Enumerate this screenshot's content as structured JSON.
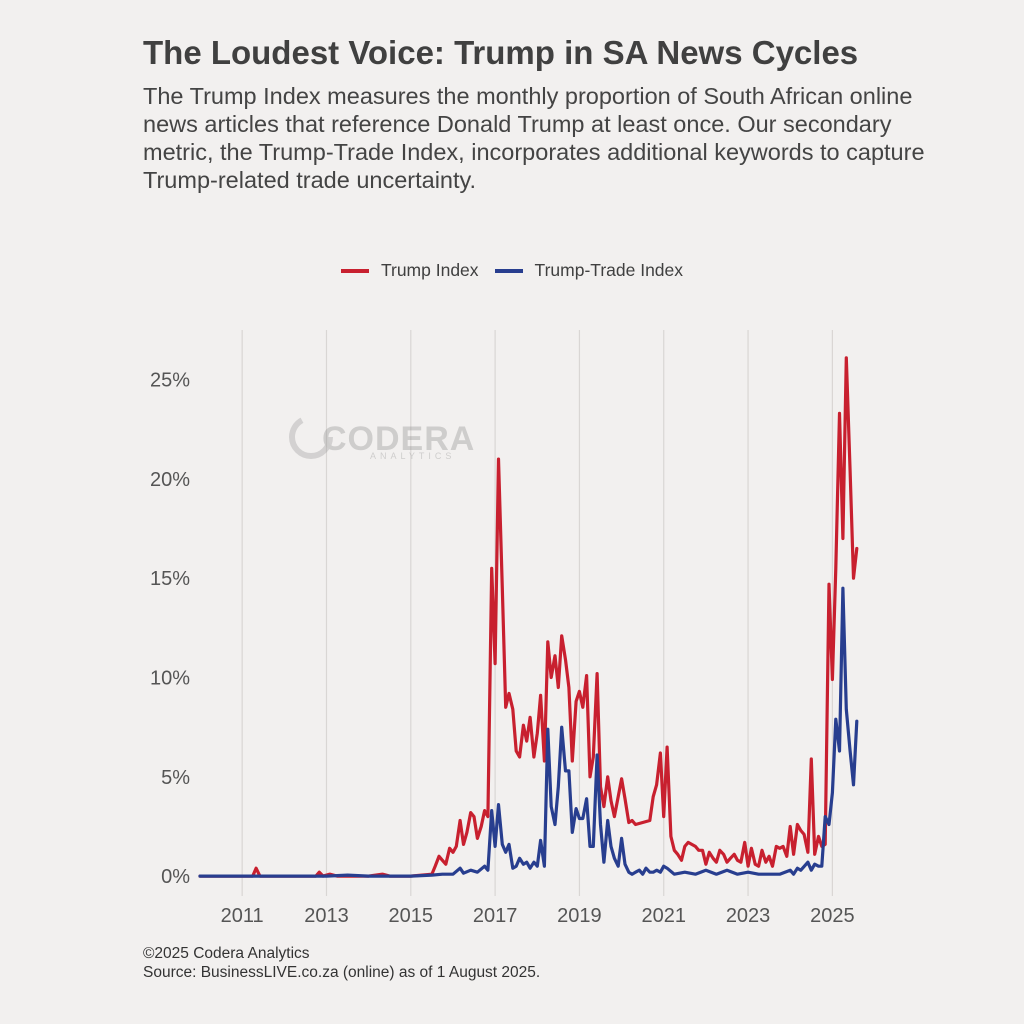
{
  "title": "The Loudest Voice: Trump in SA News Cycles",
  "subtitle": "The Trump Index measures the monthly proportion of South African online news articles that reference Donald Trump at least once. Our secondary metric, the Trump-Trade Index, incorporates additional keywords to capture Trump-related trade uncertainty.",
  "watermark": {
    "brand": "CODERA",
    "sub": "ANALYTICS"
  },
  "footer": {
    "copyright": "©2025 Codera Analytics",
    "source": "Source: BusinessLIVE.co.za (online) as of 1 August 2025."
  },
  "chart_data": {
    "type": "line",
    "title": "",
    "xlabel": "",
    "ylabel": "",
    "xlim": [
      2010.0,
      2025.75
    ],
    "ylim": [
      -1.0,
      27.5
    ],
    "x_ticks": [
      2011,
      2013,
      2015,
      2017,
      2019,
      2021,
      2023,
      2025
    ],
    "y_ticks": [
      0,
      5,
      10,
      15,
      20,
      25
    ],
    "y_tick_labels": [
      "0%",
      "5%",
      "10%",
      "15%",
      "20%",
      "25%"
    ],
    "grid": {
      "vertical": true,
      "horizontal": false
    },
    "legend": "top-center",
    "series": [
      {
        "name": "Trump Index",
        "color": "#c8202f",
        "points": [
          [
            2010.0,
            0.0
          ],
          [
            2011.0,
            0.0
          ],
          [
            2011.25,
            0.0
          ],
          [
            2011.33,
            0.4
          ],
          [
            2011.42,
            0.0
          ],
          [
            2012.75,
            0.0
          ],
          [
            2012.83,
            0.2
          ],
          [
            2012.92,
            0.0
          ],
          [
            2013.08,
            0.1
          ],
          [
            2013.25,
            0.0
          ],
          [
            2014.0,
            0.0
          ],
          [
            2014.33,
            0.1
          ],
          [
            2014.5,
            0.0
          ],
          [
            2015.0,
            0.0
          ],
          [
            2015.5,
            0.1
          ],
          [
            2015.58,
            0.5
          ],
          [
            2015.67,
            1.0
          ],
          [
            2015.75,
            0.8
          ],
          [
            2015.83,
            0.6
          ],
          [
            2015.92,
            1.4
          ],
          [
            2016.0,
            1.2
          ],
          [
            2016.08,
            1.5
          ],
          [
            2016.17,
            2.8
          ],
          [
            2016.25,
            1.6
          ],
          [
            2016.33,
            2.2
          ],
          [
            2016.42,
            3.2
          ],
          [
            2016.5,
            3.0
          ],
          [
            2016.58,
            1.9
          ],
          [
            2016.67,
            2.5
          ],
          [
            2016.75,
            3.3
          ],
          [
            2016.83,
            3.0
          ],
          [
            2016.92,
            15.5
          ],
          [
            2017.0,
            10.7
          ],
          [
            2017.08,
            21.0
          ],
          [
            2017.17,
            14.5
          ],
          [
            2017.25,
            8.5
          ],
          [
            2017.33,
            9.2
          ],
          [
            2017.42,
            8.4
          ],
          [
            2017.5,
            6.3
          ],
          [
            2017.58,
            6.0
          ],
          [
            2017.67,
            7.6
          ],
          [
            2017.75,
            6.8
          ],
          [
            2017.83,
            8.0
          ],
          [
            2017.92,
            6.0
          ],
          [
            2018.0,
            7.2
          ],
          [
            2018.08,
            9.1
          ],
          [
            2018.17,
            5.8
          ],
          [
            2018.25,
            11.8
          ],
          [
            2018.33,
            10.0
          ],
          [
            2018.42,
            11.1
          ],
          [
            2018.5,
            9.5
          ],
          [
            2018.58,
            12.1
          ],
          [
            2018.67,
            10.9
          ],
          [
            2018.75,
            9.5
          ],
          [
            2018.83,
            5.8
          ],
          [
            2018.92,
            8.8
          ],
          [
            2019.0,
            9.3
          ],
          [
            2019.08,
            8.5
          ],
          [
            2019.17,
            10.1
          ],
          [
            2019.25,
            5.0
          ],
          [
            2019.33,
            6.0
          ],
          [
            2019.42,
            10.2
          ],
          [
            2019.5,
            4.5
          ],
          [
            2019.58,
            3.5
          ],
          [
            2019.67,
            5.0
          ],
          [
            2019.75,
            3.8
          ],
          [
            2019.83,
            3.0
          ],
          [
            2019.92,
            4.0
          ],
          [
            2020.0,
            4.9
          ],
          [
            2020.08,
            3.9
          ],
          [
            2020.17,
            2.7
          ],
          [
            2020.25,
            2.8
          ],
          [
            2020.33,
            2.6
          ],
          [
            2020.5,
            2.7
          ],
          [
            2020.67,
            2.8
          ],
          [
            2020.75,
            4.0
          ],
          [
            2020.83,
            4.6
          ],
          [
            2020.92,
            6.2
          ],
          [
            2021.0,
            3.0
          ],
          [
            2021.08,
            6.5
          ],
          [
            2021.17,
            2.0
          ],
          [
            2021.25,
            1.3
          ],
          [
            2021.33,
            1.1
          ],
          [
            2021.42,
            0.8
          ],
          [
            2021.5,
            1.5
          ],
          [
            2021.58,
            1.7
          ],
          [
            2021.75,
            1.5
          ],
          [
            2021.83,
            1.3
          ],
          [
            2021.92,
            1.3
          ],
          [
            2022.0,
            0.6
          ],
          [
            2022.08,
            1.2
          ],
          [
            2022.17,
            0.9
          ],
          [
            2022.25,
            0.7
          ],
          [
            2022.33,
            1.3
          ],
          [
            2022.42,
            1.1
          ],
          [
            2022.5,
            0.7
          ],
          [
            2022.58,
            0.9
          ],
          [
            2022.67,
            1.1
          ],
          [
            2022.75,
            0.8
          ],
          [
            2022.83,
            0.7
          ],
          [
            2022.92,
            1.7
          ],
          [
            2023.0,
            0.5
          ],
          [
            2023.08,
            1.4
          ],
          [
            2023.17,
            0.6
          ],
          [
            2023.25,
            0.5
          ],
          [
            2023.33,
            1.3
          ],
          [
            2023.42,
            0.7
          ],
          [
            2023.5,
            1.0
          ],
          [
            2023.58,
            0.5
          ],
          [
            2023.67,
            1.5
          ],
          [
            2023.75,
            1.4
          ],
          [
            2023.83,
            1.5
          ],
          [
            2023.92,
            1.0
          ],
          [
            2024.0,
            2.5
          ],
          [
            2024.08,
            1.1
          ],
          [
            2024.17,
            2.6
          ],
          [
            2024.25,
            2.3
          ],
          [
            2024.33,
            2.1
          ],
          [
            2024.42,
            1.2
          ],
          [
            2024.5,
            5.9
          ],
          [
            2024.58,
            1.1
          ],
          [
            2024.67,
            2.0
          ],
          [
            2024.75,
            1.5
          ],
          [
            2024.83,
            1.6
          ],
          [
            2024.92,
            14.7
          ],
          [
            2025.0,
            9.9
          ],
          [
            2025.08,
            15.5
          ],
          [
            2025.17,
            23.3
          ],
          [
            2025.25,
            17.0
          ],
          [
            2025.33,
            26.1
          ],
          [
            2025.42,
            20.4
          ],
          [
            2025.5,
            15.0
          ],
          [
            2025.58,
            16.5
          ]
        ]
      },
      {
        "name": "Trump-Trade Index",
        "color": "#283e8f",
        "points": [
          [
            2010.0,
            0.0
          ],
          [
            2013.0,
            0.0
          ],
          [
            2013.5,
            0.05
          ],
          [
            2014.0,
            0.0
          ],
          [
            2015.0,
            0.0
          ],
          [
            2015.5,
            0.05
          ],
          [
            2015.75,
            0.1
          ],
          [
            2016.0,
            0.1
          ],
          [
            2016.17,
            0.4
          ],
          [
            2016.25,
            0.15
          ],
          [
            2016.42,
            0.3
          ],
          [
            2016.58,
            0.2
          ],
          [
            2016.75,
            0.5
          ],
          [
            2016.83,
            0.3
          ],
          [
            2016.92,
            3.3
          ],
          [
            2017.0,
            1.5
          ],
          [
            2017.08,
            3.6
          ],
          [
            2017.17,
            1.6
          ],
          [
            2017.25,
            1.2
          ],
          [
            2017.33,
            1.6
          ],
          [
            2017.42,
            0.4
          ],
          [
            2017.5,
            0.5
          ],
          [
            2017.58,
            0.9
          ],
          [
            2017.67,
            0.6
          ],
          [
            2017.75,
            0.7
          ],
          [
            2017.83,
            0.4
          ],
          [
            2017.92,
            0.7
          ],
          [
            2018.0,
            0.5
          ],
          [
            2018.08,
            1.8
          ],
          [
            2018.17,
            0.5
          ],
          [
            2018.25,
            7.4
          ],
          [
            2018.33,
            3.5
          ],
          [
            2018.42,
            2.6
          ],
          [
            2018.5,
            4.5
          ],
          [
            2018.58,
            7.5
          ],
          [
            2018.67,
            5.3
          ],
          [
            2018.75,
            5.3
          ],
          [
            2018.83,
            2.2
          ],
          [
            2018.92,
            3.4
          ],
          [
            2019.0,
            2.9
          ],
          [
            2019.08,
            2.9
          ],
          [
            2019.17,
            3.9
          ],
          [
            2019.25,
            1.5
          ],
          [
            2019.33,
            1.5
          ],
          [
            2019.42,
            6.1
          ],
          [
            2019.5,
            2.6
          ],
          [
            2019.58,
            0.7
          ],
          [
            2019.67,
            2.8
          ],
          [
            2019.75,
            1.5
          ],
          [
            2019.83,
            0.9
          ],
          [
            2019.92,
            0.5
          ],
          [
            2020.0,
            1.9
          ],
          [
            2020.08,
            0.6
          ],
          [
            2020.17,
            0.2
          ],
          [
            2020.25,
            0.1
          ],
          [
            2020.33,
            0.2
          ],
          [
            2020.42,
            0.3
          ],
          [
            2020.5,
            0.1
          ],
          [
            2020.58,
            0.4
          ],
          [
            2020.67,
            0.2
          ],
          [
            2020.75,
            0.2
          ],
          [
            2020.83,
            0.3
          ],
          [
            2020.92,
            0.2
          ],
          [
            2021.0,
            0.5
          ],
          [
            2021.08,
            0.4
          ],
          [
            2021.25,
            0.1
          ],
          [
            2021.5,
            0.2
          ],
          [
            2021.75,
            0.1
          ],
          [
            2022.0,
            0.3
          ],
          [
            2022.25,
            0.1
          ],
          [
            2022.5,
            0.3
          ],
          [
            2022.75,
            0.1
          ],
          [
            2023.0,
            0.2
          ],
          [
            2023.25,
            0.1
          ],
          [
            2023.5,
            0.1
          ],
          [
            2023.75,
            0.1
          ],
          [
            2024.0,
            0.3
          ],
          [
            2024.08,
            0.1
          ],
          [
            2024.17,
            0.4
          ],
          [
            2024.25,
            0.3
          ],
          [
            2024.42,
            0.7
          ],
          [
            2024.5,
            0.3
          ],
          [
            2024.58,
            0.6
          ],
          [
            2024.67,
            0.5
          ],
          [
            2024.75,
            0.5
          ],
          [
            2024.83,
            3.0
          ],
          [
            2024.92,
            2.6
          ],
          [
            2025.0,
            4.2
          ],
          [
            2025.08,
            7.9
          ],
          [
            2025.17,
            6.3
          ],
          [
            2025.25,
            14.5
          ],
          [
            2025.33,
            8.4
          ],
          [
            2025.42,
            6.3
          ],
          [
            2025.5,
            4.6
          ],
          [
            2025.58,
            7.8
          ]
        ]
      }
    ]
  }
}
